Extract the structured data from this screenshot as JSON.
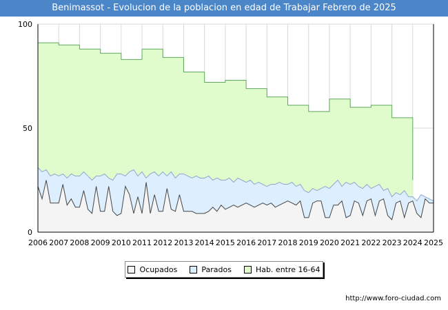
{
  "header": {
    "title": "Benimassot - Evolucion de la poblacion en edad de Trabajar Febrero de 2025"
  },
  "footer": {
    "source": "http://www.foro-ciudad.com"
  },
  "colors": {
    "title_bg": "#4a86c8",
    "hab_fill": "#e0fccc",
    "hab_line": "#5fa85f",
    "parados_fill": "#ddeeff",
    "parados_line": "#8aa8cc",
    "ocupados_fill": "#f4f4f4",
    "ocupados_line": "#444444",
    "grid": "#d8d8d8",
    "axis": "#000000"
  },
  "chart_data": {
    "type": "area",
    "title": "Benimassot - Evolucion de la poblacion en edad de Trabajar Febrero de 2025",
    "xlabel": "",
    "ylabel": "",
    "x_ticks": [
      "2006",
      "2007",
      "2008",
      "2009",
      "2010",
      "2011",
      "2012",
      "2013",
      "2014",
      "2015",
      "2016",
      "2017",
      "2018",
      "2019",
      "2020",
      "2021",
      "2022",
      "2023",
      "2024",
      "2025"
    ],
    "y_ticks": [
      "0",
      "50",
      "100"
    ],
    "ylim": [
      0,
      100
    ],
    "xlim": [
      2006,
      2025
    ],
    "series": [
      {
        "name": "Hab. entre 16-64",
        "type": "step",
        "start": [
          2006,
          2007,
          2008,
          2009,
          2010,
          2011,
          2012,
          2013,
          2014,
          2015,
          2016,
          2017,
          2018,
          2019,
          2020,
          2021,
          2022,
          2023
        ],
        "values": [
          91,
          90,
          88,
          86,
          83,
          88,
          84,
          77,
          72,
          73,
          69,
          65,
          61,
          58,
          64,
          60,
          61,
          55
        ],
        "end": 2024.0
      },
      {
        "name": "Parados",
        "x": [
          2006.0,
          2006.2,
          2006.4,
          2006.6,
          2006.8,
          2007.0,
          2007.2,
          2007.4,
          2007.6,
          2007.8,
          2008.0,
          2008.2,
          2008.4,
          2008.6,
          2008.8,
          2009.0,
          2009.2,
          2009.4,
          2009.6,
          2009.8,
          2010.0,
          2010.2,
          2010.4,
          2010.6,
          2010.8,
          2011.0,
          2011.2,
          2011.4,
          2011.6,
          2011.8,
          2012.0,
          2012.2,
          2012.4,
          2012.6,
          2012.8,
          2013.0,
          2013.2,
          2013.4,
          2013.6,
          2013.8,
          2014.0,
          2014.2,
          2014.4,
          2014.6,
          2014.8,
          2015.0,
          2015.2,
          2015.4,
          2015.6,
          2015.8,
          2016.0,
          2016.2,
          2016.4,
          2016.6,
          2016.8,
          2017.0,
          2017.2,
          2017.4,
          2017.6,
          2017.8,
          2018.0,
          2018.2,
          2018.4,
          2018.6,
          2018.8,
          2019.0,
          2019.2,
          2019.4,
          2019.6,
          2019.8,
          2020.0,
          2020.2,
          2020.4,
          2020.6,
          2020.8,
          2021.0,
          2021.2,
          2021.4,
          2021.6,
          2021.8,
          2022.0,
          2022.2,
          2022.4,
          2022.6,
          2022.8,
          2023.0,
          2023.2,
          2023.4,
          2023.6,
          2023.8,
          2024.0,
          2024.2,
          2024.4,
          2024.6,
          2024.8,
          2025.0
        ],
        "values": [
          31,
          29,
          30,
          27,
          28,
          27,
          28,
          26,
          28,
          27,
          27,
          29,
          27,
          25,
          27,
          27,
          28,
          26,
          25,
          28,
          28,
          27,
          29,
          30,
          27,
          29,
          26,
          28,
          29,
          27,
          29,
          27,
          29,
          26,
          28,
          28,
          27,
          26,
          27,
          26,
          26,
          27,
          25,
          26,
          25,
          25,
          26,
          24,
          26,
          25,
          24,
          25,
          23,
          24,
          23,
          22,
          23,
          23,
          24,
          23,
          23,
          24,
          22,
          23,
          20,
          19,
          21,
          20,
          21,
          22,
          21,
          23,
          25,
          22,
          24,
          23,
          24,
          22,
          21,
          23,
          21,
          22,
          23,
          20,
          21,
          17,
          19,
          18,
          20,
          17,
          17,
          15,
          18,
          17,
          16,
          15
        ]
      },
      {
        "name": "Ocupados",
        "x": [
          2006.0,
          2006.2,
          2006.4,
          2006.6,
          2006.8,
          2007.0,
          2007.2,
          2007.4,
          2007.6,
          2007.8,
          2008.0,
          2008.2,
          2008.4,
          2008.6,
          2008.8,
          2009.0,
          2009.2,
          2009.4,
          2009.6,
          2009.8,
          2010.0,
          2010.2,
          2010.4,
          2010.6,
          2010.8,
          2011.0,
          2011.2,
          2011.4,
          2011.6,
          2011.8,
          2012.0,
          2012.2,
          2012.4,
          2012.6,
          2012.8,
          2013.0,
          2013.2,
          2013.4,
          2013.6,
          2013.8,
          2014.0,
          2014.2,
          2014.4,
          2014.6,
          2014.8,
          2015.0,
          2015.2,
          2015.4,
          2015.6,
          2015.8,
          2016.0,
          2016.2,
          2016.4,
          2016.6,
          2016.8,
          2017.0,
          2017.2,
          2017.4,
          2017.6,
          2017.8,
          2018.0,
          2018.2,
          2018.4,
          2018.6,
          2018.8,
          2019.0,
          2019.2,
          2019.4,
          2019.6,
          2019.8,
          2020.0,
          2020.2,
          2020.4,
          2020.6,
          2020.8,
          2021.0,
          2021.2,
          2021.4,
          2021.6,
          2021.8,
          2022.0,
          2022.2,
          2022.4,
          2022.6,
          2022.8,
          2023.0,
          2023.2,
          2023.4,
          2023.6,
          2023.8,
          2024.0,
          2024.2,
          2024.4,
          2024.6,
          2024.8,
          2025.0
        ],
        "values": [
          22,
          16,
          25,
          14,
          14,
          14,
          23,
          13,
          16,
          12,
          12,
          20,
          11,
          9,
          22,
          10,
          10,
          22,
          10,
          8,
          9,
          22,
          18,
          9,
          17,
          9,
          24,
          9,
          18,
          10,
          10,
          21,
          11,
          10,
          18,
          10,
          10,
          10,
          9,
          9,
          9,
          10,
          12,
          10,
          13,
          11,
          12,
          13,
          12,
          13,
          14,
          13,
          12,
          13,
          14,
          13,
          14,
          12,
          13,
          14,
          15,
          14,
          13,
          15,
          7,
          7,
          14,
          15,
          15,
          7,
          7,
          13,
          13,
          15,
          7,
          8,
          15,
          14,
          8,
          15,
          16,
          8,
          15,
          16,
          8,
          6,
          14,
          15,
          7,
          14,
          15,
          9,
          7,
          16,
          14,
          14
        ]
      }
    ],
    "legend": [
      "Ocupados",
      "Parados",
      "Hab. entre 16-64"
    ],
    "legend_position": "bottom-center",
    "grid": true
  }
}
